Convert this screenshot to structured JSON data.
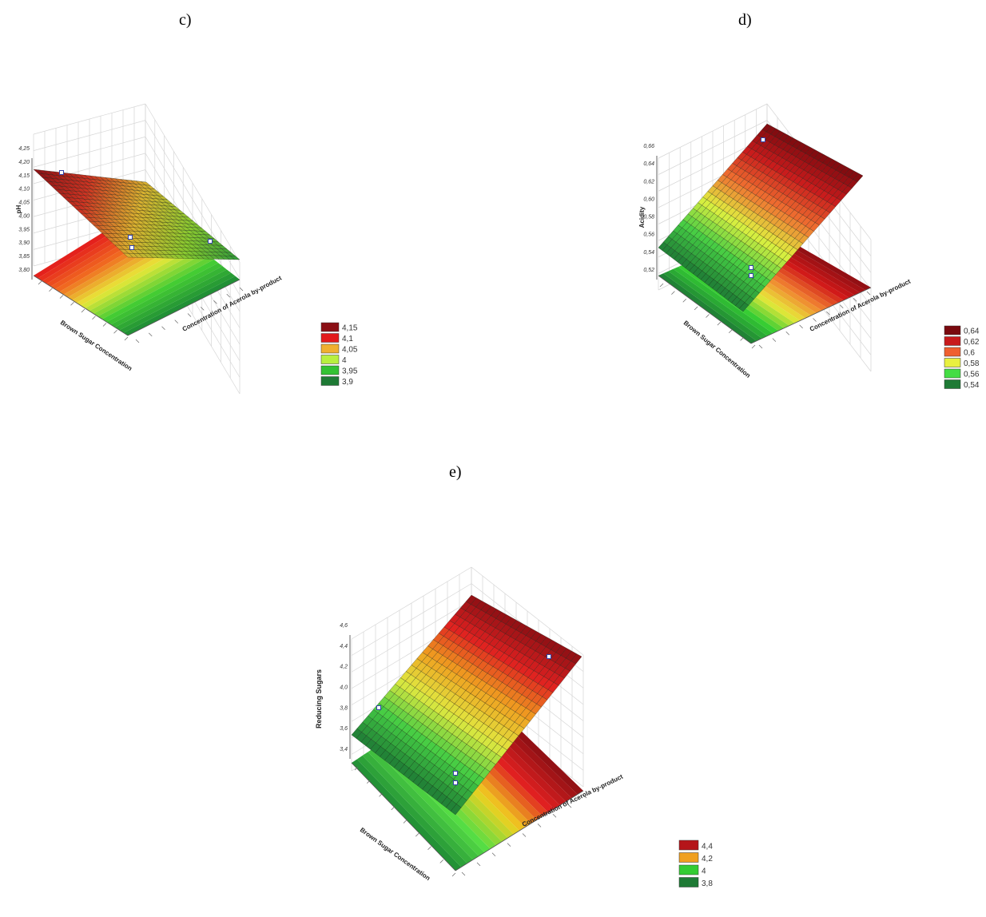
{
  "panel_labels": {
    "c": "c)",
    "d": "d)",
    "e": "e)"
  },
  "chart_data": [
    {
      "id": "c",
      "type": "surface3d",
      "zlabel": "pH",
      "xlabel": "Brown Sugar Concentration",
      "ylabel": "Concentration of Acerola by-product",
      "ztick_labels": [
        "4,25",
        "4,20",
        "4,15",
        "4,10",
        "4,05",
        "4,00",
        "3,95",
        "3,90",
        "3,85",
        "3,80"
      ],
      "legend": [
        {
          "label": "4,15",
          "color": "#8b0f14"
        },
        {
          "label": "4,1",
          "color": "#e31a1c"
        },
        {
          "label": "4,05",
          "color": "#f0b030"
        },
        {
          "label": "4",
          "color": "#b8f040"
        },
        {
          "label": "3,95",
          "color": "#33c233"
        },
        {
          "label": "3,9",
          "color": "#1e7a35"
        }
      ]
    },
    {
      "id": "d",
      "type": "surface3d",
      "zlabel": "Acidity",
      "xlabel": "Brown Sugar Concentration",
      "ylabel": "Concentration of Acerola by-product",
      "ztick_labels": [
        "0,66",
        "0,64",
        "0,62",
        "0,60",
        "0,58",
        "0,56",
        "0,54",
        "0,52"
      ],
      "legend": [
        {
          "label": "0,64",
          "color": "#7a0a0f"
        },
        {
          "label": "0,62",
          "color": "#c81a1c"
        },
        {
          "label": "0,6",
          "color": "#f06030"
        },
        {
          "label": "0,58",
          "color": "#e8f040"
        },
        {
          "label": "0,56",
          "color": "#44dd44"
        },
        {
          "label": "0,54",
          "color": "#1e7a35"
        }
      ]
    },
    {
      "id": "e",
      "type": "surface3d",
      "zlabel": "Reducing Sugars",
      "xlabel": "Brown Sugar Concentration",
      "ylabel": "Concentration of Acerola by-product",
      "ztick_labels": [
        "4,6",
        "4,4",
        "4,2",
        "4,0",
        "3,8",
        "3,6",
        "3,4"
      ],
      "legend": [
        {
          "label": "4,4",
          "color": "#b5151a"
        },
        {
          "label": "4,2",
          "color": "#f0a020"
        },
        {
          "label": "4",
          "color": "#33cc33"
        },
        {
          "label": "3,8",
          "color": "#1e7a35"
        }
      ]
    }
  ]
}
